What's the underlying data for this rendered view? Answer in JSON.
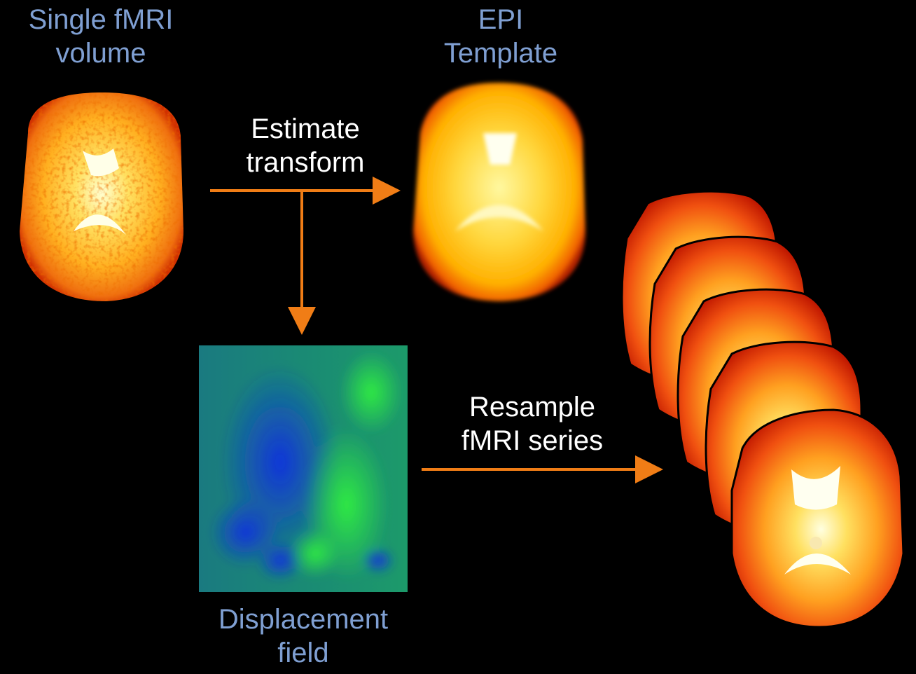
{
  "colors": {
    "background": "#000000",
    "title_text": "#7f9fd2",
    "step_text": "#ffffff",
    "arrow": "#f07d16",
    "brain_hot_low": "#cc2200",
    "brain_hot_high": "#ffffe0",
    "field_blue": "#1133dd",
    "field_green": "#22dd44",
    "field_teal": "#1a8a78"
  },
  "nodes": {
    "fmri_volume": {
      "line1": "Single fMRI",
      "line2": "volume",
      "icon": "brain-slice-noisy-image"
    },
    "epi_template": {
      "line1": "EPI",
      "line2": "Template",
      "icon": "brain-slice-smooth-image"
    },
    "displacement_field": {
      "line1": "Displacement",
      "line2": "field",
      "icon": "displacement-field-image"
    },
    "fmri_series": {
      "icon": "brain-slice-stack-image",
      "slice_count": 5
    }
  },
  "edges": {
    "estimate": {
      "line1": "Estimate",
      "line2": "transform"
    },
    "resample": {
      "line1": "Resample",
      "line2": "fMRI series"
    }
  }
}
